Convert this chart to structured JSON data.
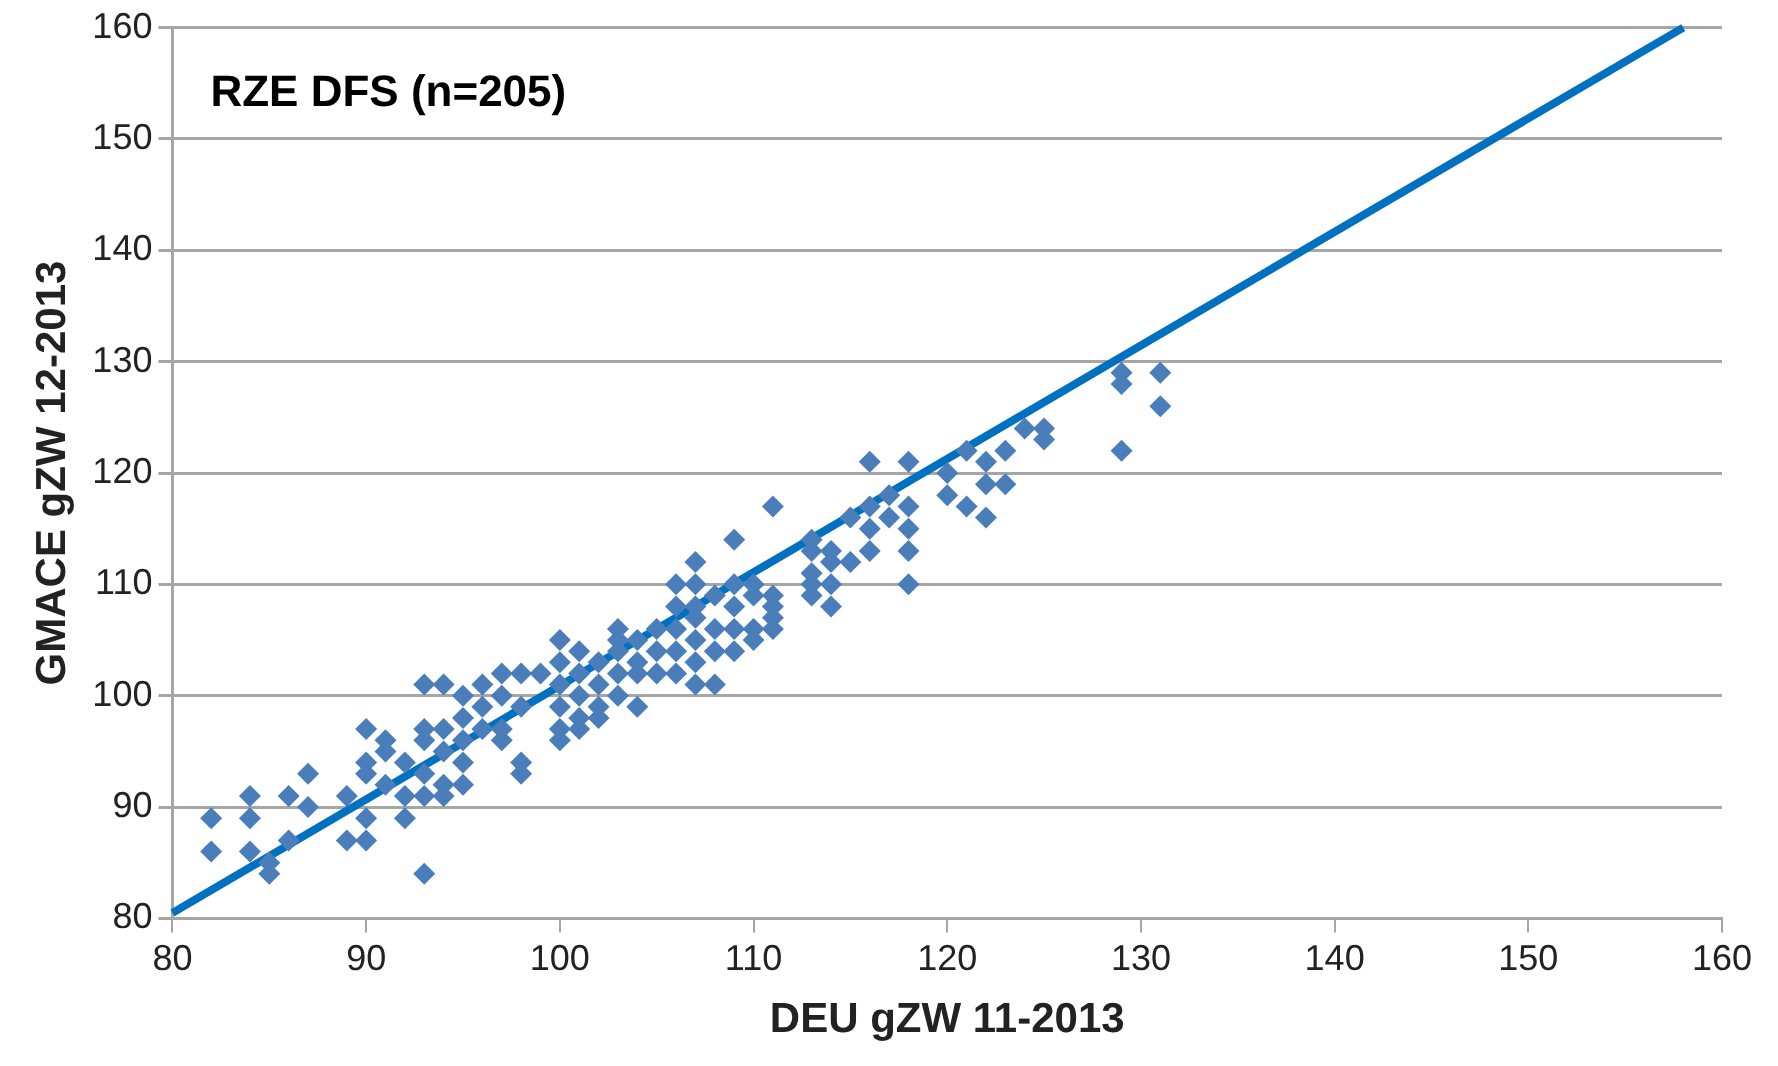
{
  "chart_data": {
    "type": "scatter",
    "xlabel": "DEU gZW 11-2013",
    "ylabel": "GMACE gZW 12-2013",
    "annotations": [
      "RZE DFS (n=205)"
    ],
    "xlim": [
      80,
      160
    ],
    "xticks": [
      80,
      90,
      100,
      110,
      120,
      130,
      140,
      150,
      160
    ],
    "ylim": [
      80,
      160
    ],
    "yticks": [
      80,
      90,
      100,
      110,
      120,
      130,
      140,
      150,
      160
    ],
    "grid": "y",
    "legend": false,
    "series": [
      {
        "marker": "diamond",
        "color": "#4a7ebb",
        "x": [
          82,
          82,
          84,
          84,
          84,
          85,
          85,
          86,
          86,
          87,
          87,
          89,
          89,
          90,
          90,
          90,
          90,
          90,
          91,
          91,
          91,
          92,
          92,
          92,
          93,
          93,
          93,
          93,
          93,
          93,
          94,
          94,
          94,
          94,
          94,
          95,
          95,
          95,
          95,
          95,
          96,
          96,
          96,
          97,
          97,
          97,
          97,
          98,
          98,
          98,
          98,
          99,
          100,
          100,
          100,
          100,
          100,
          100,
          101,
          101,
          101,
          101,
          101,
          102,
          102,
          102,
          102,
          103,
          103,
          103,
          103,
          103,
          104,
          104,
          104,
          104,
          105,
          105,
          105,
          106,
          106,
          106,
          106,
          106,
          107,
          107,
          107,
          107,
          107,
          107,
          107,
          108,
          108,
          108,
          108,
          109,
          109,
          109,
          109,
          109,
          110,
          110,
          110,
          110,
          111,
          111,
          111,
          111,
          111,
          113,
          113,
          113,
          113,
          113,
          114,
          114,
          114,
          114,
          115,
          115,
          116,
          116,
          116,
          116,
          117,
          117,
          118,
          118,
          118,
          118,
          118,
          120,
          120,
          121,
          121,
          122,
          122,
          122,
          123,
          123,
          124,
          125,
          125,
          129,
          129,
          129,
          131,
          131
        ],
        "values": [
          89,
          86,
          91,
          89,
          86,
          85,
          84,
          87,
          91,
          93,
          90,
          91,
          87,
          97,
          94,
          93,
          89,
          87,
          96,
          95,
          92,
          94,
          91,
          89,
          101,
          97,
          96,
          93,
          91,
          84,
          101,
          97,
          95,
          92,
          91,
          100,
          98,
          96,
          94,
          92,
          101,
          99,
          97,
          102,
          100,
          97,
          96,
          102,
          99,
          94,
          93,
          102,
          105,
          103,
          101,
          99,
          97,
          96,
          104,
          102,
          100,
          98,
          97,
          103,
          101,
          99,
          98,
          106,
          105,
          104,
          102,
          100,
          105,
          103,
          102,
          99,
          106,
          104,
          102,
          110,
          108,
          106,
          104,
          102,
          112,
          110,
          108,
          107,
          105,
          103,
          101,
          109,
          106,
          104,
          101,
          114,
          110,
          108,
          106,
          104,
          110,
          109,
          106,
          105,
          117,
          109,
          108,
          107,
          106,
          114,
          113,
          111,
          110,
          109,
          113,
          112,
          110,
          108,
          116,
          112,
          121,
          117,
          115,
          113,
          118,
          116,
          121,
          117,
          115,
          113,
          110,
          120,
          118,
          122,
          117,
          121,
          119,
          116,
          122,
          119,
          124,
          124,
          123,
          129,
          128,
          122,
          129,
          126
        ]
      },
      {
        "type": "line",
        "marker": "none",
        "color": "#0070c0",
        "x": [
          80,
          158
        ],
        "values": [
          80.5,
          160
        ]
      }
    ]
  }
}
